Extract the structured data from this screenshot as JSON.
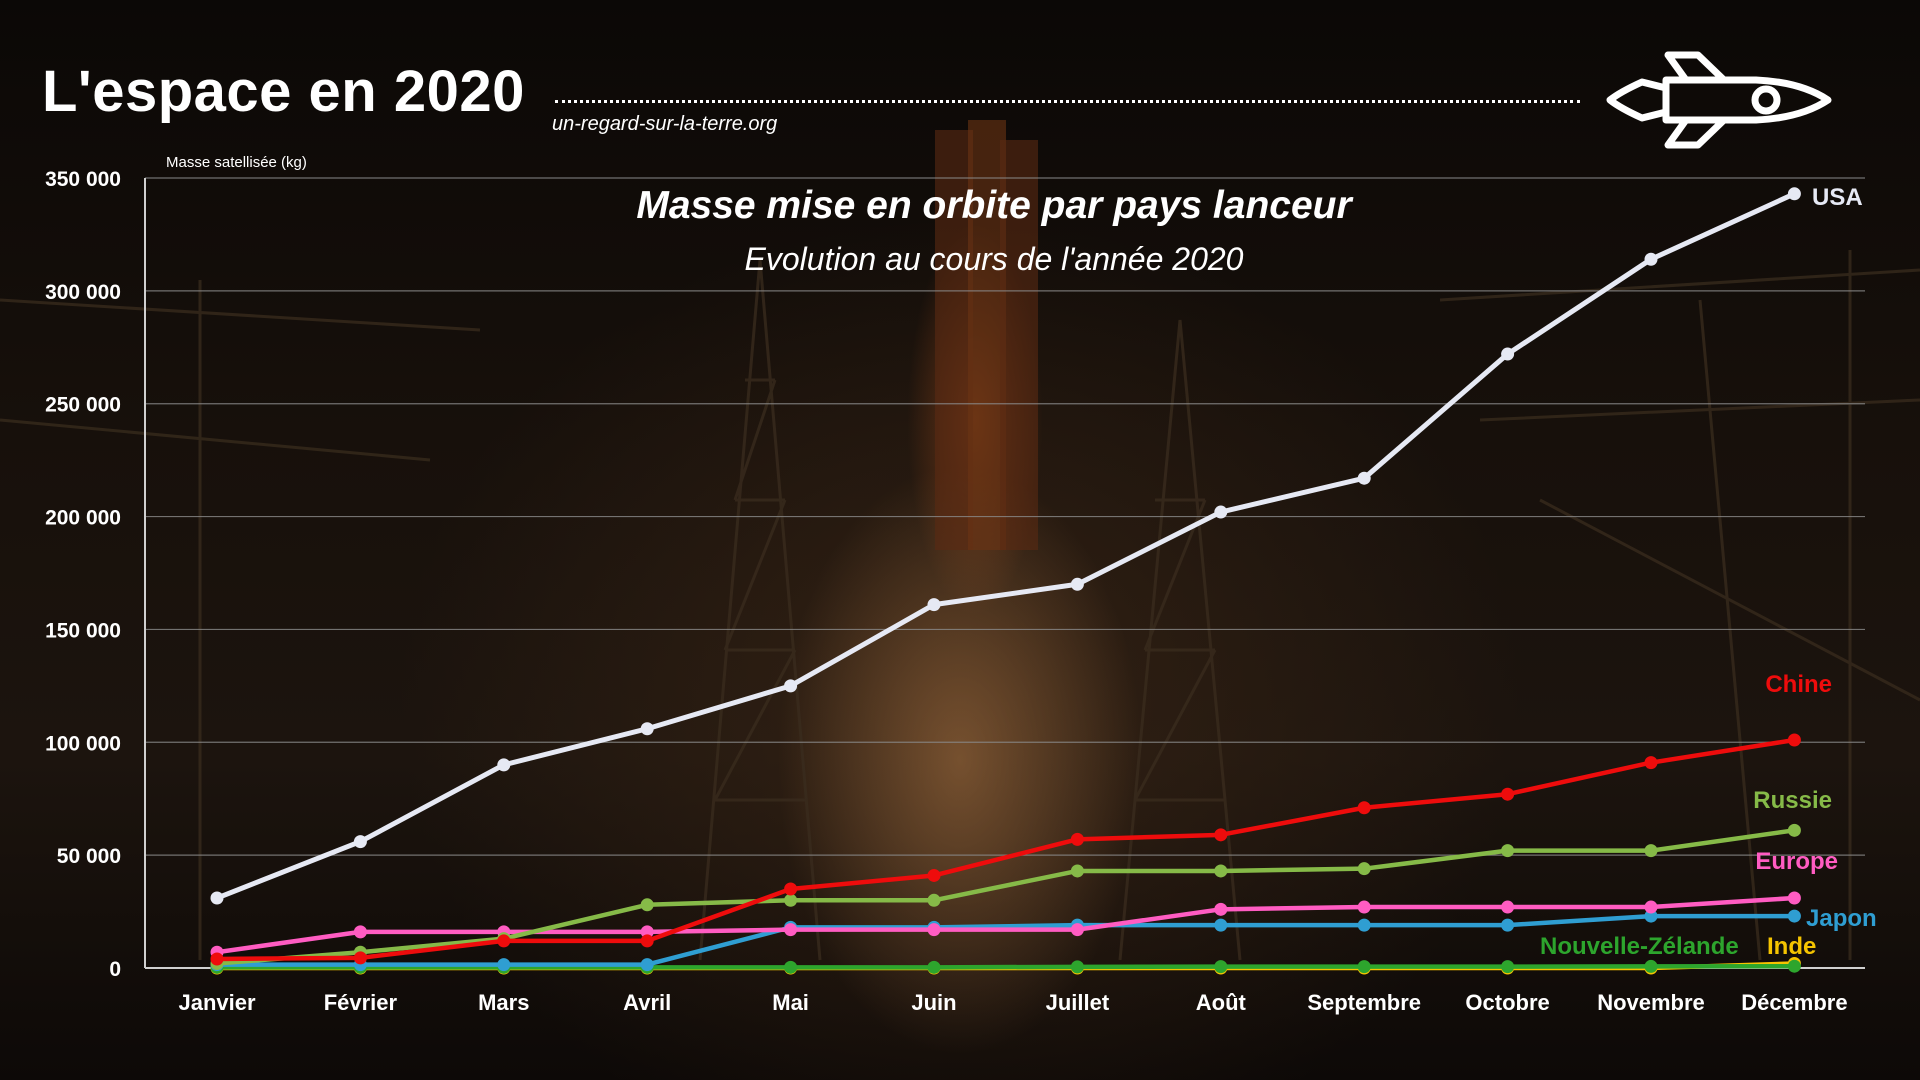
{
  "header": {
    "title": "L'espace en 2020",
    "site": "un-regard-sur-la-terre.org"
  },
  "icons": {
    "logo": "rocket-icon"
  },
  "colors": {
    "USA": "#e6e9f4",
    "Chine": "#ee0c0c",
    "Russie": "#86ba48",
    "Europe": "#ff5cc2",
    "Japon": "#2f9ed2",
    "Nouvelle-Zélande": "#2da52d",
    "Inde": "#f5c400"
  },
  "chart_data": {
    "type": "line",
    "title": "Masse mise en orbite par pays lanceur",
    "subtitle": "Evolution au cours de l'année 2020",
    "ylabel": "Masse satellisée (kg)",
    "xlabel": "",
    "ylim": [
      0,
      350000
    ],
    "yticks": [
      0,
      50000,
      100000,
      150000,
      200000,
      250000,
      300000,
      350000
    ],
    "ytick_labels": [
      "0",
      "50 000",
      "100 000",
      "150 000",
      "200 000",
      "250 000",
      "300 000",
      "350 000"
    ],
    "grid": true,
    "categories": [
      "Janvier",
      "Février",
      "Mars",
      "Avril",
      "Mai",
      "Juin",
      "Juillet",
      "Août",
      "Septembre",
      "Octobre",
      "Novembre",
      "Décembre"
    ],
    "series": [
      {
        "name": "USA",
        "values": [
          31000,
          56000,
          90000,
          106000,
          125000,
          161000,
          170000,
          202000,
          217000,
          272000,
          314000,
          343000
        ]
      },
      {
        "name": "Chine",
        "values": [
          4000,
          4500,
          12000,
          12000,
          35000,
          41000,
          57000,
          59000,
          71000,
          77000,
          91000,
          101000
        ]
      },
      {
        "name": "Russie",
        "values": [
          2000,
          7000,
          13000,
          28000,
          30000,
          30000,
          43000,
          43000,
          44000,
          52000,
          52000,
          61000
        ]
      },
      {
        "name": "Europe",
        "values": [
          7000,
          16000,
          16000,
          16000,
          17000,
          17000,
          17000,
          26000,
          27000,
          27000,
          27000,
          31000
        ]
      },
      {
        "name": "Japon",
        "values": [
          1500,
          1500,
          1500,
          1500,
          18000,
          18000,
          19000,
          19000,
          19000,
          19000,
          23000,
          23000
        ]
      },
      {
        "name": "Nouvelle-Zélande",
        "values": [
          300,
          300,
          300,
          300,
          300,
          300,
          500,
          600,
          600,
          600,
          700,
          800
        ]
      },
      {
        "name": "Inde",
        "values": [
          0,
          0,
          0,
          0,
          0,
          0,
          0,
          0,
          0,
          0,
          0,
          2000
        ]
      }
    ]
  }
}
